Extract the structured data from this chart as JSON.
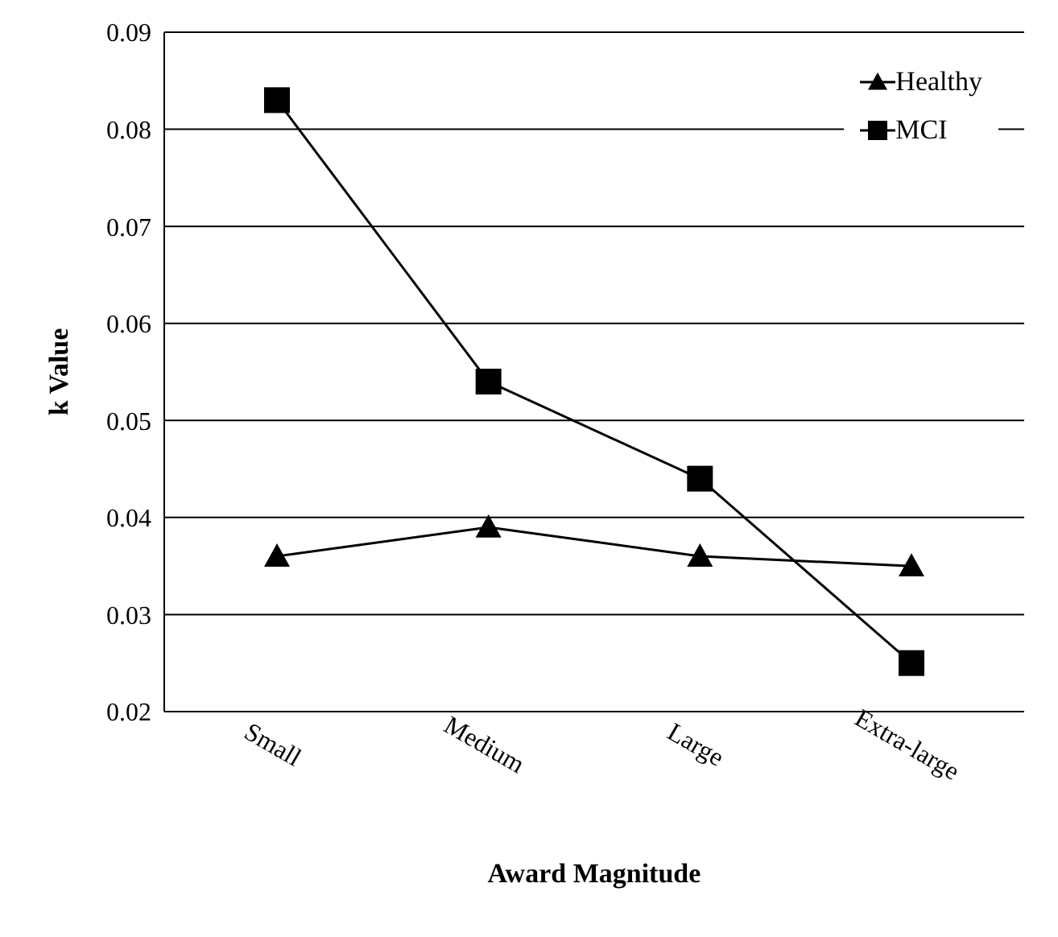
{
  "chart_data": {
    "type": "line",
    "xlabel": "Award Magnitude",
    "ylabel": "k Value",
    "categories": [
      "Small",
      "Medium",
      "Large",
      "Extra-large"
    ],
    "series": [
      {
        "name": "Healthy",
        "color": "#000000",
        "marker": "triangle",
        "values": [
          0.036,
          0.039,
          0.036,
          0.035
        ]
      },
      {
        "name": "MCI",
        "color": "#000000",
        "marker": "square",
        "values": [
          0.083,
          0.054,
          0.044,
          0.025
        ]
      }
    ],
    "ylim": [
      0.02,
      0.09
    ],
    "yticks": [
      0.02,
      0.03,
      0.04,
      0.05,
      0.06,
      0.07,
      0.08,
      0.09
    ],
    "grid": "y",
    "legend": "top right"
  }
}
